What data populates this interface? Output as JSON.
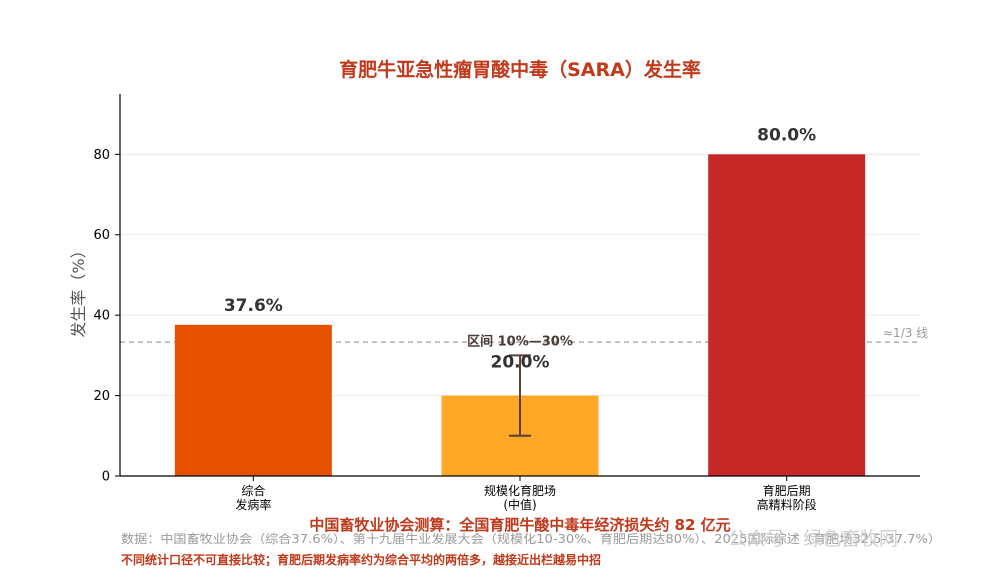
{
  "chart_data": {
    "type": "bar",
    "title": "育肥牛亚急性瘤胃酸中毒（SARA）发生率",
    "ylabel": "发生率（%）",
    "xlabel": "",
    "ylim": [
      0,
      95
    ],
    "yticks": [
      0,
      20,
      40,
      60,
      80
    ],
    "grid": true,
    "categories": [
      [
        "综合",
        "发病率"
      ],
      [
        "规模化育肥场",
        "(中值)"
      ],
      [
        "育肥后期",
        "高精料阶段"
      ]
    ],
    "values": [
      37.6,
      20.0,
      80.0
    ],
    "value_labels": [
      "37.6%",
      "20.0%",
      "80.0%"
    ],
    "colors": [
      "#e65100",
      "#ffa726",
      "#c62828"
    ],
    "error_bar": {
      "category_index": 1,
      "low": 10,
      "high": 30,
      "label": "区间 10%—30%",
      "color": "#5d4037"
    },
    "reference_line": {
      "value": 33.3,
      "label": "≈1/3 线",
      "color": "#9e9e9e"
    }
  },
  "annotations": {
    "economic_loss": "中国畜牧业协会测算：全国育肥牛酸中毒年经济损失约 82 亿元",
    "source": "数据：中国畜牧业协会（综合37.6%）、第十九届牛业发展大会（规模化10-30%、育肥后期达80%）、2025国际综述（育肥场32.5-37.7%）",
    "note": "不同统计口径不可直接比较；育肥后期发病率约为综合平均的两倍多，越接近出栏越易中招",
    "watermark": "公众号 · 绿色畜牧网"
  }
}
